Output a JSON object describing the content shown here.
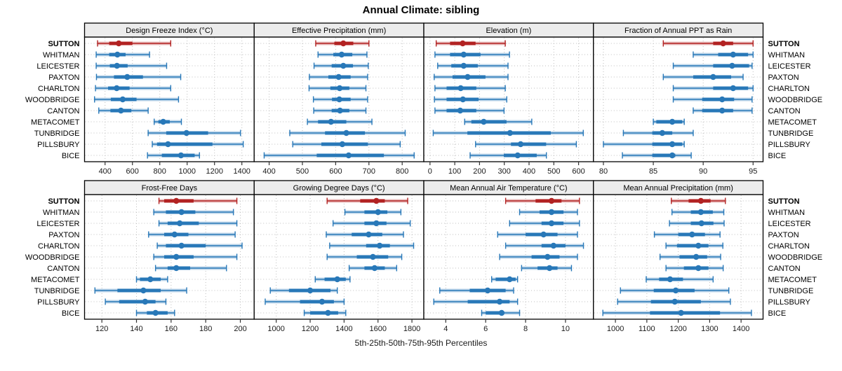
{
  "title": "Annual Climate: sibling",
  "caption": "5th-25th-50th-75th-95th Percentiles",
  "colors": {
    "highlight": "#B22222",
    "normal": "#2878B8",
    "band_opacity": 0.3,
    "grid": "#BFBFBF",
    "strip_bg": "#ECECEC",
    "border": "#000000",
    "tick_text": "#1a1a1a"
  },
  "sites": [
    {
      "name": "SUTTON",
      "highlight": true
    },
    {
      "name": "WHITMAN",
      "highlight": false
    },
    {
      "name": "LEICESTER",
      "highlight": false
    },
    {
      "name": "PAXTON",
      "highlight": false
    },
    {
      "name": "CHARLTON",
      "highlight": false
    },
    {
      "name": "WOODBRIDGE",
      "highlight": false
    },
    {
      "name": "CANTON",
      "highlight": false
    },
    {
      "name": "METACOMET",
      "highlight": false
    },
    {
      "name": "TUNBRIDGE",
      "highlight": false
    },
    {
      "name": "PILLSBURY",
      "highlight": false
    },
    {
      "name": "BICE",
      "highlight": false
    }
  ],
  "chart_data": {
    "type": "dot-interval-trellis",
    "percentiles": [
      5,
      25,
      50,
      75,
      95
    ],
    "legend_position": "none",
    "grid": "dotted",
    "rows": [
      {
        "panels": [
          {
            "title": "Design Freeze Index (°C)",
            "xlim": [
              250,
              1490
            ],
            "ticks": [
              400,
              600,
              800,
              1000,
              1200,
              1400
            ],
            "series": [
              [
                345,
                430,
                500,
                600,
                880
              ],
              [
                335,
                430,
                490,
                550,
                725
              ],
              [
                335,
                435,
                487,
                565,
                850
              ],
              [
                337,
                465,
                562,
                677,
                953
              ],
              [
                330,
                422,
                485,
                579,
                880
              ],
              [
                323,
                442,
                529,
                630,
                937
              ],
              [
                354,
                439,
                516,
                592,
                715
              ],
              [
                759,
                790,
                825,
                873,
                958
              ],
              [
                715,
                847,
                995,
                1153,
                1390
              ],
              [
                745,
                780,
                860,
                1185,
                1410
              ],
              [
                710,
                815,
                955,
                1055,
                1090
              ]
            ]
          },
          {
            "title": "Effective Precipitation (mm)",
            "xlim": [
              355,
              865
            ],
            "ticks": [
              400,
              500,
              600,
              700,
              800
            ],
            "series": [
              [
                540,
                596,
                623,
                653,
                700
              ],
              [
                547,
                593,
                618,
                650,
                694
              ],
              [
                535,
                588,
                623,
                652,
                698
              ],
              [
                521,
                578,
                609,
                645,
                696
              ],
              [
                520,
                584,
                612,
                641,
                691
              ],
              [
                533,
                589,
                611,
                645,
                696
              ],
              [
                534,
                588,
                613,
                641,
                691
              ],
              [
                515,
                547,
                586,
                632,
                709
              ],
              [
                462,
                568,
                632,
                688,
                809
              ],
              [
                471,
                557,
                620,
                697,
                794
              ],
              [
                385,
                543,
                639,
                745,
                836
              ]
            ]
          },
          {
            "title": "Elevation (m)",
            "xlim": [
              -25,
              660
            ],
            "ticks": [
              0,
              100,
              200,
              300,
              400,
              500,
              600
            ],
            "series": [
              [
                25,
                81,
                132,
                184,
                304
              ],
              [
                20,
                81,
                136,
                204,
                321
              ],
              [
                31,
                86,
                136,
                193,
                315
              ],
              [
                17,
                91,
                152,
                224,
                315
              ],
              [
                20,
                67,
                124,
                187,
                304
              ],
              [
                18,
                67,
                133,
                196,
                310
              ],
              [
                20,
                67,
                122,
                187,
                299
              ],
              [
                140,
                167,
                217,
                309,
                411
              ],
              [
                13,
                151,
                323,
                488,
                619
              ],
              [
                184,
                327,
                366,
                469,
                591
              ],
              [
                162,
                298,
                354,
                431,
                470
              ]
            ]
          },
          {
            "title": "Fraction of Annual PPT as Rain",
            "xlim": [
              79,
              96
            ],
            "ticks": [
              80,
              85,
              90,
              95
            ],
            "series": [
              [
                86,
                91,
                92,
                93,
                95
              ],
              [
                89,
                91.5,
                93,
                94.5,
                95
              ],
              [
                87,
                91,
                92.9,
                94.6,
                94.9
              ],
              [
                86,
                89,
                91,
                92.8,
                94
              ],
              [
                87,
                91,
                93,
                94.5,
                95
              ],
              [
                87,
                89.9,
                91.9,
                93.1,
                94.9
              ],
              [
                89,
                89.9,
                91.9,
                93,
                94.9
              ],
              [
                85,
                85.3,
                86.9,
                87.9,
                88.1
              ],
              [
                82,
                84.9,
                85.9,
                86.9,
                89
              ],
              [
                80,
                84.9,
                86.9,
                87.9,
                88.1
              ],
              [
                81.9,
                84.9,
                86.9,
                87.2,
                88.8
              ]
            ]
          }
        ]
      },
      {
        "panels": [
          {
            "title": "Frost-Free Days",
            "xlim": [
              110,
              208
            ],
            "ticks": [
              120,
              140,
              160,
              180,
              200
            ],
            "series": [
              [
                153,
                156,
                163,
                173,
                198
              ],
              [
                150,
                157,
                166,
                174,
                196
              ],
              [
                153,
                158,
                165,
                176,
                198
              ],
              [
                147,
                156,
                162,
                170,
                197
              ],
              [
                152,
                157,
                166,
                180,
                201
              ],
              [
                150,
                156,
                163,
                173,
                198
              ],
              [
                151,
                158,
                163,
                171,
                192
              ],
              [
                140,
                142,
                148,
                154,
                158
              ],
              [
                116,
                129,
                144,
                154,
                169
              ],
              [
                122,
                130,
                145,
                151,
                157
              ],
              [
                140,
                146,
                151,
                158,
                162
              ]
            ]
          },
          {
            "title": "Growing Degree Days (°C)",
            "xlim": [
              870,
              1870
            ],
            "ticks": [
              1000,
              1200,
              1400,
              1600,
              1800
            ],
            "series": [
              [
                1300,
                1495,
                1590,
                1640,
                1775
              ],
              [
                1405,
                1520,
                1600,
                1655,
                1735
              ],
              [
                1335,
                1520,
                1590,
                1650,
                1790
              ],
              [
                1295,
                1445,
                1545,
                1625,
                1750
              ],
              [
                1315,
                1530,
                1610,
                1670,
                1810
              ],
              [
                1300,
                1475,
                1570,
                1660,
                1740
              ],
              [
                1430,
                1520,
                1580,
                1640,
                1710
              ],
              [
                1230,
                1285,
                1360,
                1410,
                1435
              ],
              [
                965,
                1075,
                1200,
                1320,
                1360
              ],
              [
                935,
                1140,
                1270,
                1340,
                1400
              ],
              [
                1165,
                1200,
                1305,
                1365,
                1410
              ]
            ]
          },
          {
            "title": "Mean Annual Air Temperature (°C)",
            "xlim": [
              2.9,
              11.4
            ],
            "ticks": [
              4,
              6,
              8,
              10
            ],
            "series": [
              [
                7.0,
                8.5,
                9.3,
                9.8,
                10.7
              ],
              [
                7.7,
                8.7,
                9.3,
                9.9,
                10.6
              ],
              [
                7.2,
                8.8,
                9.3,
                9.9,
                10.7
              ],
              [
                6.6,
                8.0,
                8.9,
                9.6,
                10.6
              ],
              [
                7.0,
                8.8,
                9.4,
                10.0,
                10.9
              ],
              [
                6.7,
                8.3,
                9.1,
                9.7,
                10.6
              ],
              [
                7.8,
                8.6,
                9.2,
                9.6,
                10.3
              ],
              [
                6.3,
                6.5,
                7.2,
                7.5,
                7.6
              ],
              [
                3.7,
                5.2,
                6.1,
                7.0,
                7.4
              ],
              [
                3.4,
                5.1,
                6.7,
                7.2,
                7.6
              ],
              [
                5.8,
                6.0,
                6.8,
                6.9,
                7.7
              ]
            ]
          },
          {
            "title": "Mean Annual Precipitation (mm)",
            "xlim": [
              930,
              1470
            ],
            "ticks": [
              1000,
              1100,
              1200,
              1300,
              1400
            ],
            "series": [
              [
                1178,
                1233,
                1272,
                1303,
                1350
              ],
              [
                1180,
                1240,
                1272,
                1310,
                1345
              ],
              [
                1172,
                1240,
                1274,
                1312,
                1346
              ],
              [
                1124,
                1200,
                1244,
                1285,
                1333
              ],
              [
                1161,
                1196,
                1264,
                1296,
                1342
              ],
              [
                1142,
                1204,
                1257,
                1292,
                1335
              ],
              [
                1161,
                1218,
                1264,
                1296,
                1343
              ],
              [
                1098,
                1139,
                1174,
                1215,
                1311
              ],
              [
                1016,
                1122,
                1192,
                1252,
                1361
              ],
              [
                1007,
                1113,
                1189,
                1272,
                1366
              ],
              [
                960,
                1110,
                1209,
                1333,
                1433
              ]
            ]
          }
        ]
      }
    ]
  }
}
